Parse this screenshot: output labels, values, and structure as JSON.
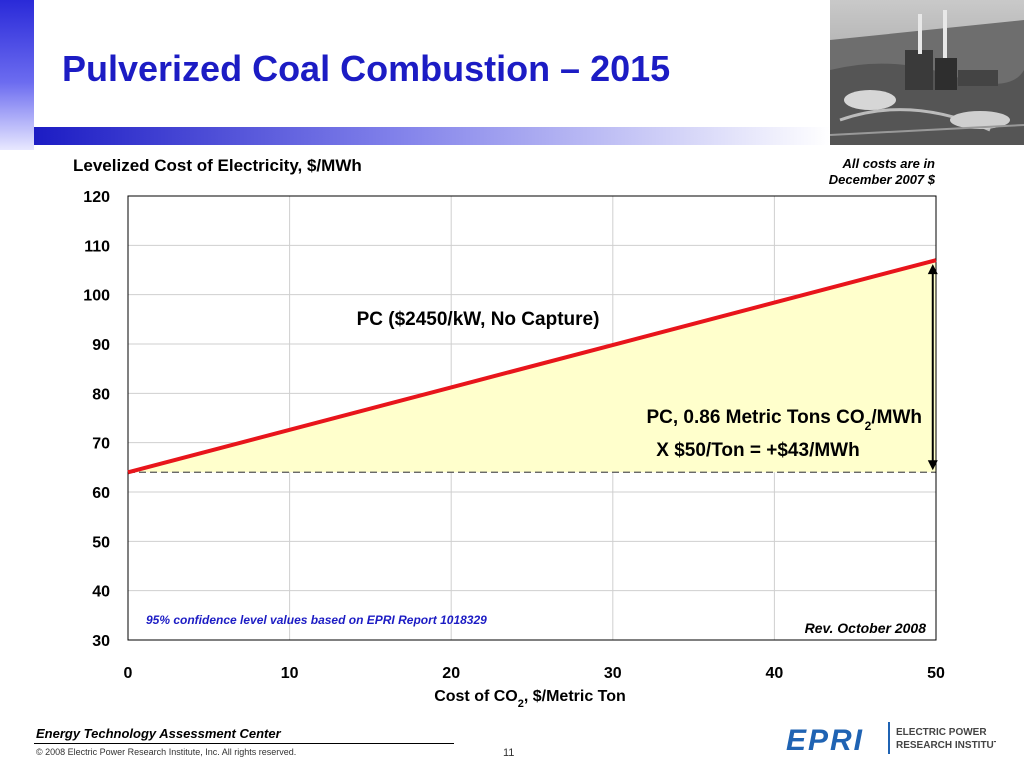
{
  "slide": {
    "title": "Pulverized Coal Combustion – 2015",
    "org": "Energy Technology Assessment Center",
    "copyright": "© 2008 Electric Power Research Institute, Inc. All rights reserved.",
    "page_number": "11",
    "logo_text": "EPRI",
    "logo_sub": [
      "ELECTRIC POWER",
      "RESEARCH INSTITUTE"
    ]
  },
  "chart_data": {
    "type": "area",
    "title": "Levelized Cost of Electricity, $/MWh",
    "ylabel": "Levelized Cost of Electricity, $/MWh",
    "xlabel_main": "Cost of CO",
    "xlabel_sub": "2",
    "xlabel_rest": ", $/Metric Ton",
    "xlim": [
      0,
      50
    ],
    "ylim": [
      30,
      120
    ],
    "x_ticks": [
      0,
      10,
      20,
      30,
      40,
      50
    ],
    "y_ticks": [
      30,
      40,
      50,
      60,
      70,
      80,
      90,
      100,
      110,
      120
    ],
    "grid": true,
    "series": [
      {
        "name": "PC ($2450/kW, No Capture)",
        "x": [
          0,
          50
        ],
        "y": [
          64,
          107
        ],
        "color": "#e8151b"
      }
    ],
    "baseline": {
      "y": 64,
      "style": "dashed"
    },
    "fill_color": "#ffffcc",
    "annotations": {
      "series_label": "PC ($2450/kW, No Capture)",
      "co2_line1_main": "PC, 0.86 Metric Tons CO",
      "co2_line1_sub": "2",
      "co2_line1_rest": "/MWh",
      "co2_line2": "X $50/Ton = +$43/MWh",
      "confidence": "95% confidence level values based on EPRI Report 1018329",
      "revision": "Rev. October 2008"
    },
    "note_lines": [
      "All costs are in",
      "December 2007 $"
    ]
  }
}
